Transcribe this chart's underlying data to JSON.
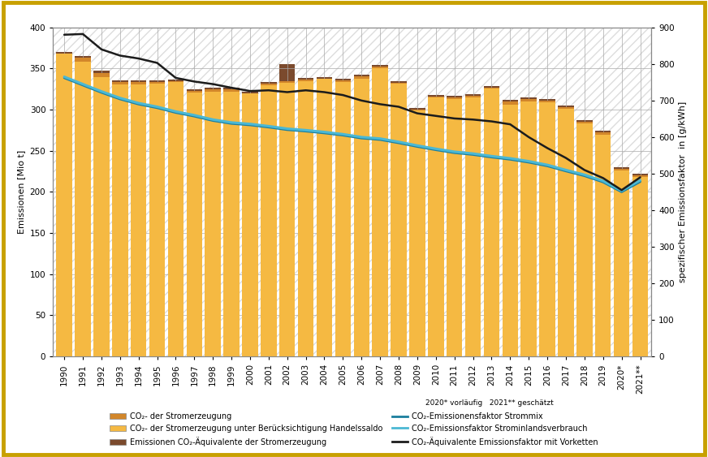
{
  "years_labels": [
    "1990",
    "1991",
    "1992",
    "1993",
    "1994",
    "1995",
    "1996",
    "1997",
    "1998",
    "1999",
    "2000",
    "2001",
    "2002",
    "2003",
    "2004",
    "2005",
    "2006",
    "2007",
    "2008",
    "2009",
    "2010",
    "2011",
    "2012",
    "2013",
    "2014",
    "2015",
    "2016",
    "2017",
    "2018",
    "2019",
    "2020*",
    "2021**"
  ],
  "bar_co2_stromerzeugung": [
    368,
    363,
    345,
    334,
    334,
    334,
    335,
    323,
    325,
    325,
    320,
    332,
    335,
    337,
    338,
    336,
    341,
    352,
    333,
    300,
    316,
    315,
    317,
    327,
    310,
    313,
    311,
    303,
    285,
    272,
    228,
    220
  ],
  "bar_co2_handelssaldo": [
    368,
    358,
    340,
    331,
    331,
    332,
    334,
    321,
    322,
    322,
    320,
    330,
    333,
    335,
    338,
    334,
    338,
    350,
    332,
    299,
    315,
    313,
    315,
    326,
    306,
    310,
    309,
    301,
    283,
    270,
    226,
    218
  ],
  "bar_co2_aequivalente": [
    370,
    365,
    347,
    336,
    336,
    336,
    337,
    325,
    327,
    327,
    322,
    334,
    355,
    339,
    340,
    338,
    343,
    354,
    335,
    302,
    318,
    317,
    319,
    329,
    312,
    315,
    313,
    305,
    287,
    274,
    230,
    222
  ],
  "line_black": [
    880,
    882,
    840,
    823,
    815,
    803,
    762,
    752,
    745,
    735,
    726,
    728,
    723,
    728,
    723,
    715,
    700,
    690,
    683,
    665,
    658,
    651,
    648,
    643,
    635,
    600,
    570,
    543,
    510,
    488,
    455,
    490
  ],
  "line_cyan_inland": [
    765,
    745,
    725,
    707,
    693,
    683,
    670,
    660,
    648,
    640,
    636,
    630,
    623,
    619,
    614,
    608,
    600,
    596,
    587,
    577,
    568,
    560,
    555,
    548,
    542,
    534,
    524,
    510,
    497,
    480,
    453,
    482
  ],
  "line_dark_strommix": [
    762,
    742,
    722,
    704,
    690,
    680,
    667,
    657,
    645,
    637,
    633,
    627,
    620,
    616,
    611,
    605,
    597,
    593,
    584,
    574,
    565,
    557,
    552,
    545,
    539,
    531,
    521,
    507,
    494,
    477,
    450,
    478
  ],
  "bar_color_dark_orange": "#D2862A",
  "bar_color_light_orange": "#F5B942",
  "bar_color_brown": "#7B4A2D",
  "line_color_black": "#1C1C1C",
  "line_color_dark_cyan": "#1B7E9E",
  "line_color_light_cyan": "#4BB8D4",
  "ylabel_left": "Emissionen [Mio t]",
  "ylabel_right": "spezifischer Emissionsfaktor  in [g/kWh]",
  "ylim_left": [
    0,
    400
  ],
  "ylim_right": [
    0,
    900
  ],
  "yticks_left": [
    0,
    50,
    100,
    150,
    200,
    250,
    300,
    350,
    400
  ],
  "yticks_right": [
    0,
    100,
    200,
    300,
    400,
    500,
    600,
    700,
    800,
    900
  ],
  "legend_labels": [
    "CO₂- der Stromerzeugung",
    "CO₂- der Stromerzeugung unter Berücksichtigung Handelssaldo",
    "Emissionen CO₂-Äquivalente der Stromerzeugung",
    "CO₂-Emissionensfaktor Strommix",
    "CO₂-Emissionsfaktor Strominlandsverbrauch",
    "CO₂-Äquivalente Emissionsfaktor mit Vorketten"
  ],
  "annotation": "2020* vorläufig   2021** geschätzt",
  "background_color": "#FFFFFF",
  "border_color": "#C8A000",
  "hatch_pattern": "///",
  "hatch_color": "#DDDDDD"
}
